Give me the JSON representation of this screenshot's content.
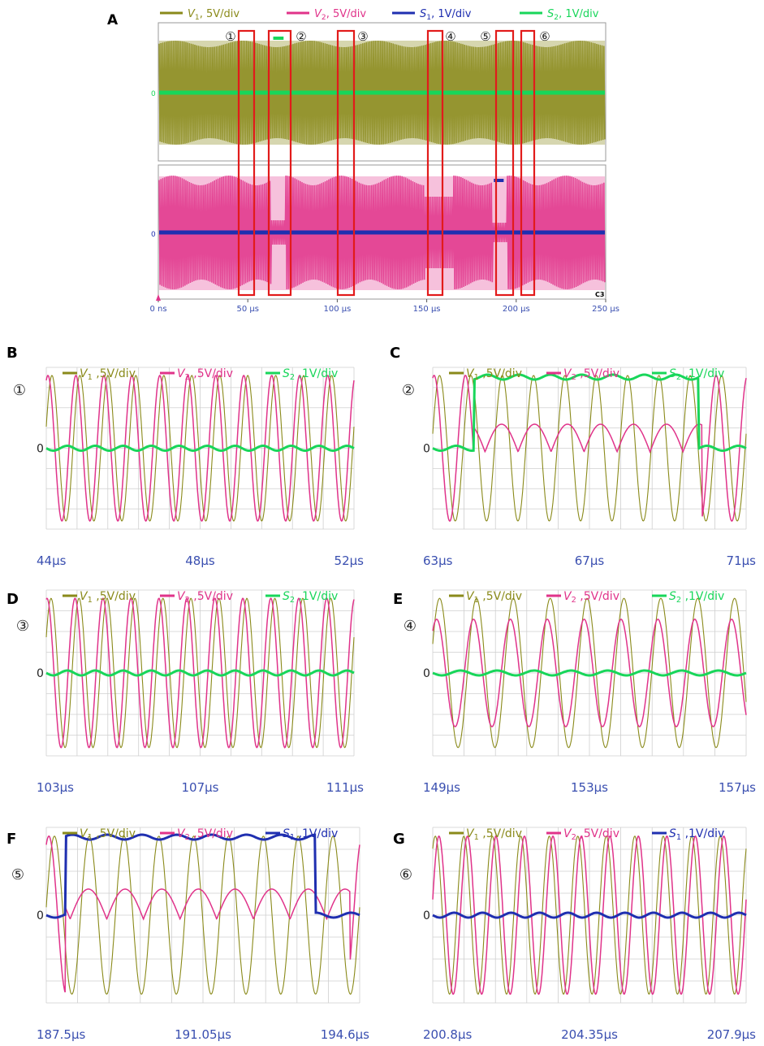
{
  "colors": {
    "v1": "#8a8a1a",
    "v2": "#e0338a",
    "s1": "#1f2fb0",
    "s2": "#18d65a",
    "box": "#e21b1b",
    "axis_text": "#3a4fb0",
    "grid": "#cfcfcf"
  },
  "chart_data": [
    {
      "id": "A",
      "type": "line",
      "panel_label": "A",
      "legend": [
        "V1, 5V/div",
        "V2, 5V/div",
        "S1, 1V/div",
        "S2, 1V/div"
      ],
      "x_ticks": [
        "0 ns",
        "50 µs",
        "100 µs",
        "150 µs",
        "200 µs",
        "250 µs"
      ],
      "x_range_us": [
        0,
        250
      ],
      "zero_label_top": "0",
      "zero_label_bottom": "0",
      "channel_tag": "C3",
      "windows": [
        {
          "marker": "①",
          "start_us": 44,
          "end_us": 52
        },
        {
          "marker": "②",
          "start_us": 63,
          "end_us": 71
        },
        {
          "marker": "③",
          "start_us": 103,
          "end_us": 111
        },
        {
          "marker": "④",
          "start_us": 149,
          "end_us": 157
        },
        {
          "marker": "⑤",
          "start_us": 187.5,
          "end_us": 194.6
        },
        {
          "marker": "⑥",
          "start_us": 200.8,
          "end_us": 207.9
        }
      ]
    },
    {
      "id": "B",
      "type": "line",
      "panel_label": "B",
      "marker": "①",
      "legend": [
        "V1 ,5V/div",
        "V2 ,5V/div",
        "S2 ,1V/div"
      ],
      "x_ticks": [
        "44μs",
        "48μs",
        "52μs"
      ],
      "zero_label": "0",
      "x_range_us": [
        44,
        52
      ],
      "series": [
        {
          "name": "V1",
          "amplitude_div": 3.0,
          "cycles": 11
        },
        {
          "name": "V2",
          "amplitude_div": 3.0,
          "cycles": 11
        },
        {
          "name": "S2",
          "level": 0,
          "ripple": "small"
        }
      ]
    },
    {
      "id": "C",
      "type": "line",
      "panel_label": "C",
      "marker": "②",
      "legend": [
        "V1 ,5V/div",
        "V2 ,5V/div",
        "S2 ,1V/div"
      ],
      "x_ticks": [
        "63μs",
        "67μs",
        "71μs"
      ],
      "zero_label": "0",
      "x_range_us": [
        63,
        71
      ],
      "series": [
        {
          "name": "V1",
          "amplitude_div": 3.0,
          "cycles": 10
        },
        {
          "name": "V2",
          "amplitude_div": 3.0,
          "note": "drops to ~1 div after S2 turns on"
        },
        {
          "name": "S2",
          "level": "high between ~64.2μs and ~70μs"
        }
      ]
    },
    {
      "id": "D",
      "type": "line",
      "panel_label": "D",
      "marker": "③",
      "legend": [
        "V1 ,5V/div",
        "V2 ,5V/div",
        "S2 ,1V/div"
      ],
      "x_ticks": [
        "103μs",
        "107μs",
        "111μs"
      ],
      "zero_label": "0",
      "x_range_us": [
        103,
        111
      ]
    },
    {
      "id": "E",
      "type": "line",
      "panel_label": "E",
      "marker": "④",
      "legend": [
        "V1 ,5V/div",
        "V2 ,5V/div",
        "S2 ,1V/div"
      ],
      "x_ticks": [
        "149μs",
        "153μs",
        "157μs"
      ],
      "zero_label": "0",
      "x_range_us": [
        149,
        157
      ],
      "series": [
        {
          "name": "V1",
          "amplitude_div": 3.0
        },
        {
          "name": "V2",
          "amplitude_div": 2.2
        }
      ]
    },
    {
      "id": "F",
      "type": "line",
      "panel_label": "F",
      "marker": "⑤",
      "legend": [
        "V1 ,5V/div",
        "V2 ,5V/div",
        "S1 ,1V/div"
      ],
      "x_ticks": [
        "187.5μs",
        "191.05μs",
        "194.6μs"
      ],
      "zero_label": "0",
      "x_range_us": [
        187.5,
        194.6
      ],
      "series": [
        {
          "name": "V1",
          "amplitude_div": 3.0
        },
        {
          "name": "V2",
          "amplitude_div": 1.0
        },
        {
          "name": "S1",
          "level": "high between ~188μs and ~194μs"
        }
      ]
    },
    {
      "id": "G",
      "type": "line",
      "panel_label": "G",
      "marker": "⑥",
      "legend": [
        "V1 ,5V/div",
        "V2 ,5V/div",
        "S1 ,1V/div"
      ],
      "x_ticks": [
        "200.8μs",
        "204.35μs",
        "207.9μs"
      ],
      "zero_label": "0",
      "x_range_us": [
        200.8,
        207.9
      ]
    }
  ]
}
